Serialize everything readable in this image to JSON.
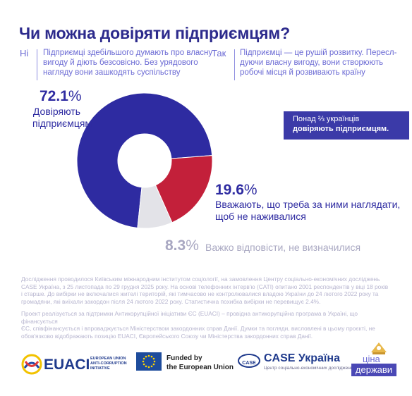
{
  "title": "Чи можна довіряти підприємцям?",
  "answers": {
    "no_label": "Ні",
    "no_lines": [
      "Підприємці здебільшого думають про власну",
      "вигоду й діють безсовісно. Без урядового",
      "нагляду вони зашкодять суспільству"
    ],
    "yes_label": "Так",
    "yes_lines": [
      "Підприємці — це рушій розвитку. Пересл-",
      "дуючи власну вигоду, вони створюють",
      "робочі місця й розвивають країну"
    ]
  },
  "chart_data": {
    "type": "pie",
    "donut": true,
    "slices": [
      {
        "label": "Довіряють підприємцям",
        "value": 72.1,
        "color": "#2e2ba1"
      },
      {
        "label": "Вважають, що треба за ними наглядати, щоб не наживалися",
        "value": 19.6,
        "color": "#c3203a"
      },
      {
        "label": "Важко відповісти, не визначилися",
        "value": 8.3,
        "color": "#e3e3e8"
      }
    ]
  },
  "labels": {
    "trust_pct": "72.1",
    "trust_sign": "%",
    "trust_lines": [
      "Довіряють",
      "підприємцям"
    ],
    "watch_pct": "19.6",
    "watch_sign": "%",
    "watch_lines": [
      "Вважають, що треба за ними наглядати,",
      "щоб не наживалися"
    ],
    "unsure_pct": "8.3",
    "unsure_sign": "%",
    "unsure_text": "Важко відповісти, не визначилися"
  },
  "callout": {
    "line1": "Понад ⅔ українців",
    "line2": "довіряють підприємцям."
  },
  "methodology": [
    "Дослідження проводилося Київським міжнародним інститутом соціології, на замовлення Центру соціально-економічних досліджень",
    "CASE Україна, з 25 листопада по 29 грудня 2025 року. На основі телефонних інтерв'ю (CATI) опитано 2001 респондентів у віці 18 років",
    "і старше. До вибірки не включалися жителі територій, які тимчасово не контролювалися владою України до 24 лютого 2022 року та",
    "громадяни, які виїхали закордон після 24 лютого 2022 року. Статистична похибка вибірки не перевищує 2.4%."
  ],
  "disclaimer": [
    "Проект реалізується за підтримки Антикорупційної ініціативи ЄС (EUACI) – провідна антикорупційна програма в Україні, що фінансується",
    "ЄС, співфінансується і впроваджується Міністерством закордонних справ Данії. Думки та погляди, висловлені в цьому проєкті, не",
    "обов'язково відображають позицію EUACI, Європейського Союзу чи Міністерства закордонних справ Данії."
  ],
  "logos": {
    "euaci_name": "EUACI",
    "euaci_sub": [
      "EUROPEAN UNION",
      "ANTI-CORRUPTION",
      "INITIATIVE"
    ],
    "eu_funded": [
      "Funded by",
      "the European Union"
    ],
    "case_badge": "CASE",
    "case_name": "CASE Україна",
    "case_sub": "Центр соціально-економічних досліджень",
    "cina_top": "ціна",
    "cina_bottom": "держави"
  },
  "colors": {
    "primary": "#2e2ba1",
    "accent_red": "#c3203a",
    "gray": "#e3e3e8",
    "light_purple": "#6b6ad4"
  }
}
